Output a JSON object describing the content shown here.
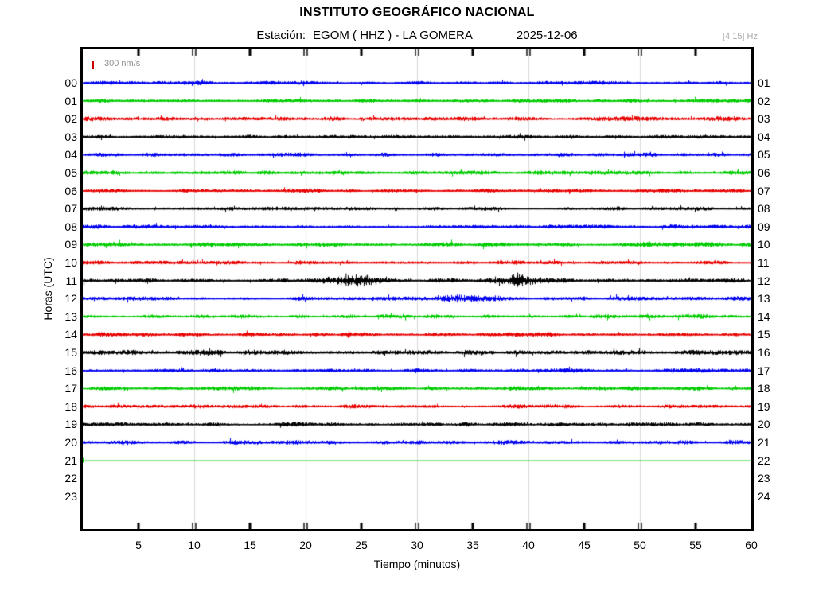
{
  "header": {
    "title": "INSTITUTO GEOGRÁFICO NACIONAL",
    "station_label": "Estación:",
    "station_value": "EGOM ( HHZ ) - LA GOMERA",
    "date": "2025-12-06",
    "filter": "[4 15] Hz"
  },
  "scale_marker": {
    "label": "300 nm/s",
    "bar_color": "#cc0000",
    "text_color": "#8f8f8f"
  },
  "chart_data": {
    "type": "line",
    "subtype": "helicorder-seismogram",
    "title": "INSTITUTO GEOGRÁFICO NACIONAL",
    "station": "EGOM",
    "channel": "HHZ",
    "location": "LA GOMERA",
    "date": "2025-12-06",
    "filter_band_hz": [
      4,
      15
    ],
    "scale_label": "300 nm/s",
    "x_label": "Tiempo (minutos)",
    "y_label": "Horas (UTC)",
    "x_range": [
      0,
      60
    ],
    "x_ticks": [
      5,
      10,
      15,
      20,
      25,
      30,
      35,
      40,
      45,
      50,
      55,
      60
    ],
    "gridlines_minutes": [
      10,
      20,
      30,
      40,
      50
    ],
    "grid_color": "#d9d9d9",
    "trace_colors_cycle": [
      "#0000f0",
      "#00cc00",
      "#e80000",
      "#000000"
    ],
    "rows": [
      {
        "hour": "00",
        "right": "01",
        "color": "#0000f0",
        "base_amp": 1.5,
        "seed": 101
      },
      {
        "hour": "01",
        "right": "02",
        "color": "#00cc00",
        "base_amp": 1.5,
        "seed": 202
      },
      {
        "hour": "02",
        "right": "03",
        "color": "#e80000",
        "base_amp": 1.7,
        "seed": 303
      },
      {
        "hour": "03",
        "right": "04",
        "color": "#000000",
        "base_amp": 1.4,
        "seed": 404
      },
      {
        "hour": "04",
        "right": "05",
        "color": "#0000f0",
        "base_amp": 1.5,
        "seed": 505
      },
      {
        "hour": "05",
        "right": "06",
        "color": "#00cc00",
        "base_amp": 1.6,
        "seed": 606
      },
      {
        "hour": "06",
        "right": "07",
        "color": "#e80000",
        "base_amp": 1.4,
        "seed": 707
      },
      {
        "hour": "07",
        "right": "08",
        "color": "#000000",
        "base_amp": 1.5,
        "seed": 808
      },
      {
        "hour": "08",
        "right": "09",
        "color": "#0000f0",
        "base_amp": 1.4,
        "seed": 909
      },
      {
        "hour": "09",
        "right": "10",
        "color": "#00cc00",
        "base_amp": 1.7,
        "seed": 1010
      },
      {
        "hour": "10",
        "right": "11",
        "color": "#e80000",
        "base_amp": 1.4,
        "seed": 1111
      },
      {
        "hour": "11",
        "right": "12",
        "color": "#000000",
        "base_amp": 1.6,
        "seed": 1212,
        "events": [
          {
            "start": 21.5,
            "end": 30,
            "peak": 24.5,
            "sigma": 1.7,
            "amp": 4.5
          },
          {
            "start": 35.5,
            "end": 41.6,
            "peak": 39,
            "sigma": 1.3,
            "amp": 4
          }
        ],
        "spikes": [
          {
            "m": 23.6,
            "a": 9
          },
          {
            "m": 24.5,
            "a": 7.5
          },
          {
            "m": 25.4,
            "a": 6
          },
          {
            "m": 37.0,
            "a": 5
          },
          {
            "m": 39.0,
            "a": 10
          }
        ]
      },
      {
        "hour": "12",
        "right": "13",
        "color": "#0000f0",
        "base_amp": 1.5,
        "seed": 1313,
        "events": [
          {
            "start": 31.5,
            "end": 42,
            "peak": 34.3,
            "sigma": 2.2,
            "amp": 1.8
          }
        ]
      },
      {
        "hour": "13",
        "right": "14",
        "color": "#00cc00",
        "base_amp": 1.5,
        "seed": 1414
      },
      {
        "hour": "14",
        "right": "15",
        "color": "#e80000",
        "base_amp": 1.5,
        "seed": 1515
      },
      {
        "hour": "15",
        "right": "16",
        "color": "#000000",
        "base_amp": 1.9,
        "seed": 1616
      },
      {
        "hour": "16",
        "right": "17",
        "color": "#0000f0",
        "base_amp": 1.5,
        "seed": 1717
      },
      {
        "hour": "17",
        "right": "18",
        "color": "#00cc00",
        "base_amp": 1.5,
        "seed": 1818
      },
      {
        "hour": "18",
        "right": "19",
        "color": "#e80000",
        "base_amp": 1.5,
        "seed": 1919
      },
      {
        "hour": "19",
        "right": "20",
        "color": "#000000",
        "base_amp": 1.6,
        "seed": 2020
      },
      {
        "hour": "20",
        "right": "21",
        "color": "#0000f0",
        "base_amp": 1.6,
        "seed": 2121
      },
      {
        "hour": "21",
        "right": "22",
        "color": "#00cc00",
        "flat": true
      },
      {
        "hour": "22",
        "right": "23",
        "missing": true
      },
      {
        "hour": "23",
        "right": "24",
        "missing": true
      }
    ]
  }
}
